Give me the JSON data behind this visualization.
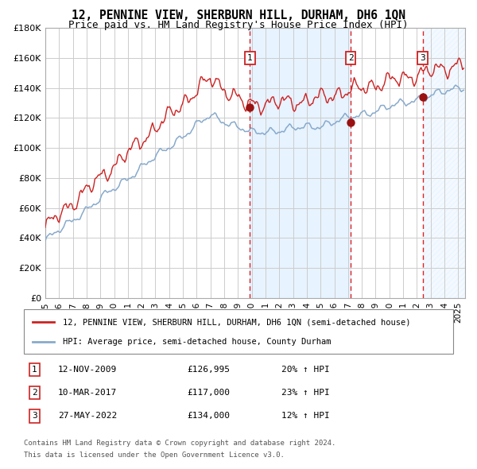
{
  "title": "12, PENNINE VIEW, SHERBURN HILL, DURHAM, DH6 1QN",
  "subtitle": "Price paid vs. HM Land Registry's House Price Index (HPI)",
  "title_fontsize": 10.5,
  "subtitle_fontsize": 9,
  "ylim": [
    0,
    180000
  ],
  "yticks": [
    0,
    20000,
    40000,
    60000,
    80000,
    100000,
    120000,
    140000,
    160000,
    180000
  ],
  "ytick_labels": [
    "£0",
    "£20K",
    "£40K",
    "£60K",
    "£80K",
    "£100K",
    "£120K",
    "£140K",
    "£160K",
    "£180K"
  ],
  "xmin": 1995.0,
  "xmax": 2025.5,
  "sale_dates": [
    2009.87,
    2017.19,
    2022.41
  ],
  "sale_prices": [
    126995,
    117000,
    134000
  ],
  "sale_labels": [
    "1",
    "2",
    "3"
  ],
  "sale_date_strings": [
    "12-NOV-2009",
    "10-MAR-2017",
    "27-MAY-2022"
  ],
  "sale_price_strings": [
    "£126,995",
    "£117,000",
    "£134,000"
  ],
  "sale_pct_strings": [
    "20% ↑ HPI",
    "23% ↑ HPI",
    "12% ↑ HPI"
  ],
  "line_color_red": "#cc2222",
  "line_color_blue": "#88aacc",
  "dot_color": "#991111",
  "dashed_color": "#dd2222",
  "shade_color": "#ddeeff",
  "background_color": "#ffffff",
  "grid_color": "#cccccc",
  "legend_line1": "12, PENNINE VIEW, SHERBURN HILL, DURHAM, DH6 1QN (semi-detached house)",
  "legend_line2": "HPI: Average price, semi-detached house, County Durham",
  "footer1": "Contains HM Land Registry data © Crown copyright and database right 2024.",
  "footer2": "This data is licensed under the Open Government Licence v3.0."
}
